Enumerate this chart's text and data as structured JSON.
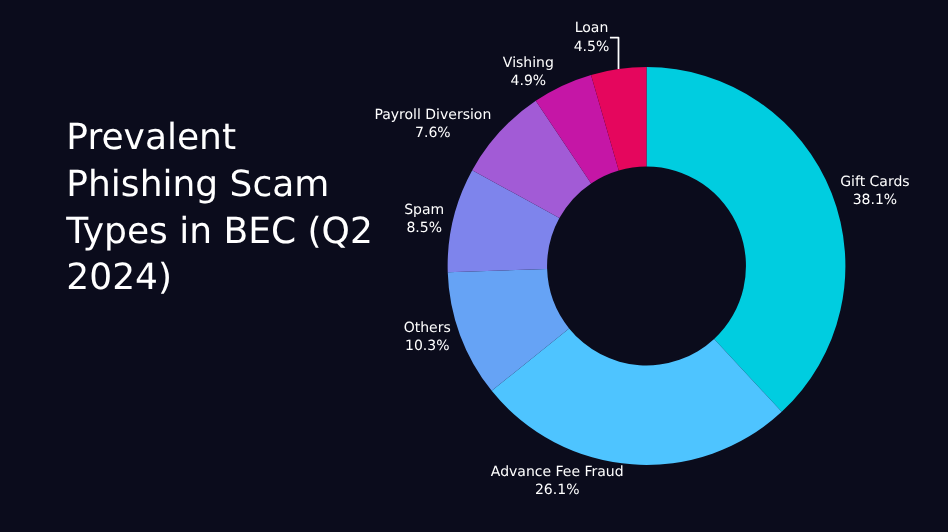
{
  "chart_data": {
    "type": "donut",
    "title": "Prevalent Phishing Scam Types in BEC (Q2 2024)",
    "categories": [
      "Gift Cards",
      "Advance Fee Fraud",
      "Others",
      "Spam",
      "Payroll Diversion",
      "Vishing",
      "Loan"
    ],
    "values": [
      38.1,
      26.1,
      10.3,
      8.5,
      7.6,
      4.9,
      4.5
    ],
    "value_labels": [
      "38.1%",
      "26.1%",
      "10.3%",
      "8.5%",
      "7.6%",
      "4.9%",
      "4.5%"
    ],
    "colors": [
      "#00cde0",
      "#4ec4ff",
      "#66a3f5",
      "#7e84ec",
      "#a25bd6",
      "#c516a6",
      "#e5065d"
    ],
    "legend": false
  }
}
